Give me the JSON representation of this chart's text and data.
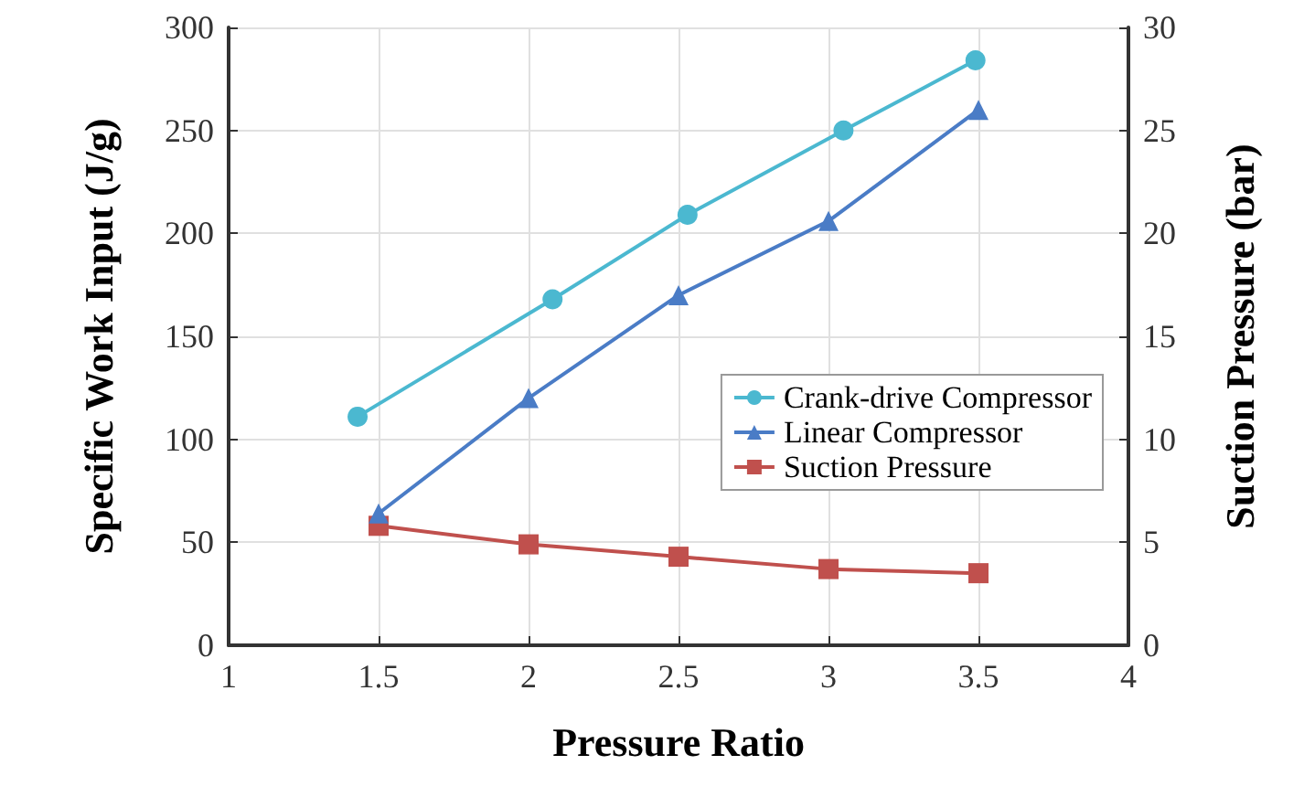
{
  "chart_data": {
    "type": "line",
    "xlabel": "Pressure Ratio",
    "ylabel": "Specific Work Input (J/g)",
    "y2label": "Suction Pressure (bar)",
    "xlim": [
      1,
      4
    ],
    "xticks": [
      1,
      1.5,
      2,
      2.5,
      3,
      3.5,
      4
    ],
    "ylim": [
      0,
      300
    ],
    "yticks": [
      0,
      50,
      100,
      150,
      200,
      250,
      300
    ],
    "y2lim": [
      0,
      30
    ],
    "y2ticks": [
      0,
      5,
      10,
      15,
      20,
      25,
      30
    ],
    "grid": true,
    "legend": "right",
    "series": [
      {
        "name": "Crank-drive Compressor",
        "color": "#4bb8d0",
        "marker": "circle",
        "x": [
          1.43,
          2.08,
          2.53,
          3.05,
          3.49
        ],
        "values": [
          111,
          168,
          209,
          250,
          284
        ]
      },
      {
        "name": "Linear Compressor",
        "color": "#4a7cc6",
        "marker": "triangle",
        "x": [
          1.5,
          2,
          2.5,
          3,
          3.5
        ],
        "values": [
          64,
          120,
          170,
          206,
          260
        ]
      },
      {
        "name": "Suction Pressure",
        "color": "#c0504d",
        "marker": "square",
        "axis": "y2",
        "x": [
          1.5,
          2,
          2.5,
          3,
          3.5
        ],
        "values": [
          5.8,
          4.9,
          4.3,
          3.7,
          3.5
        ]
      }
    ]
  }
}
